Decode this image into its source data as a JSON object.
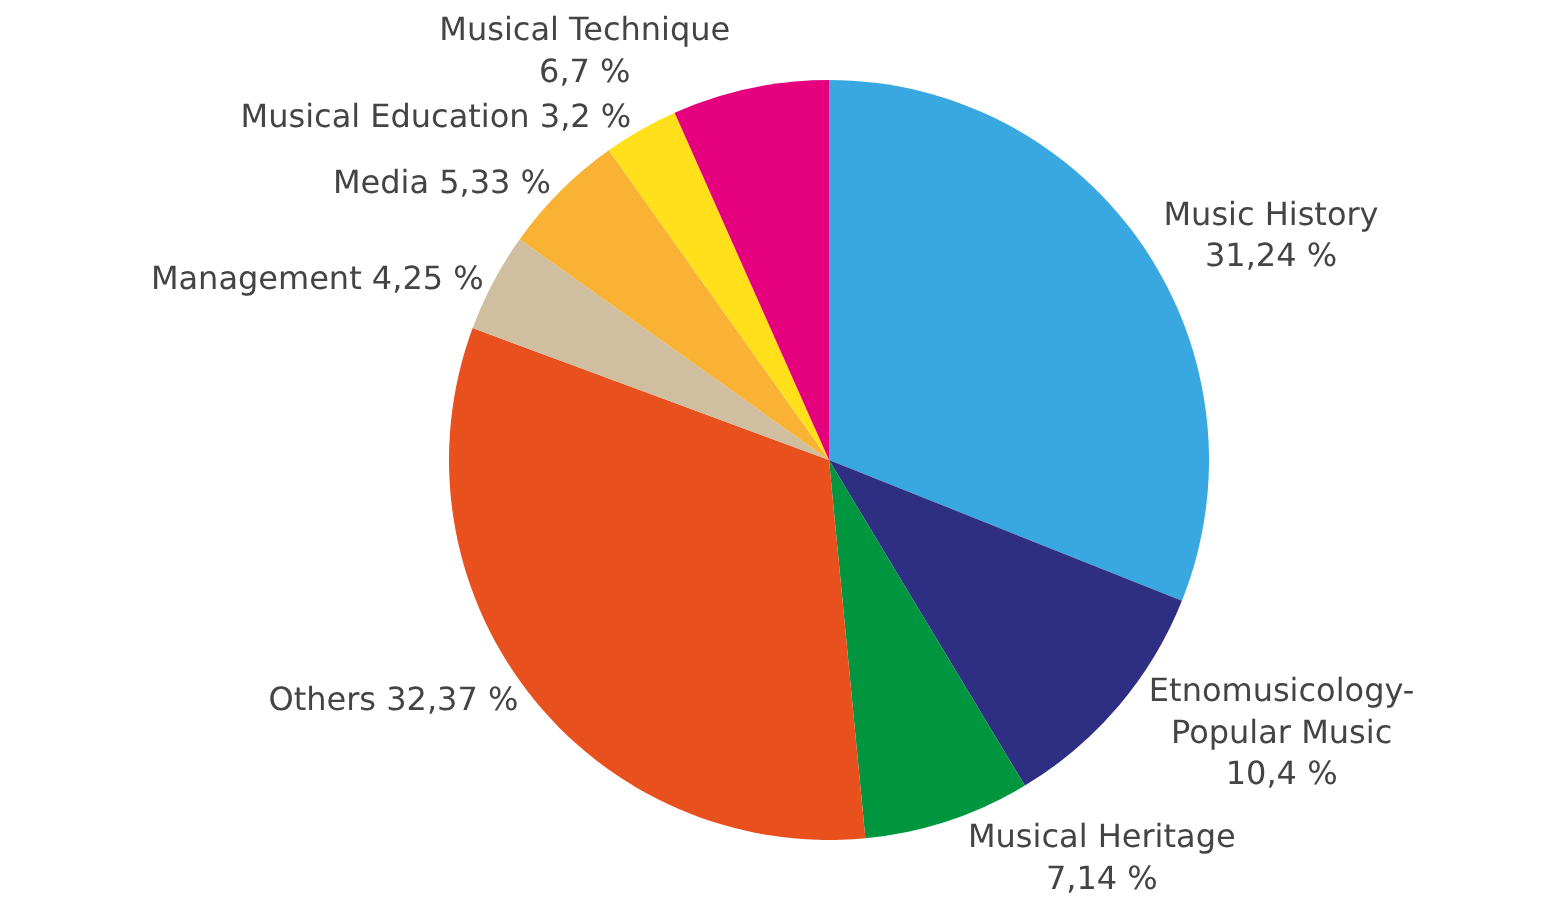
{
  "chart_data": {
    "type": "pie",
    "categories": [
      "Music History",
      "Etnomusicology-Popular Music",
      "Musical Heritage",
      "Others",
      "Management",
      "Media",
      "Musical Education",
      "Musical Technique"
    ],
    "values": [
      31.24,
      10.4,
      7.14,
      32.37,
      4.25,
      5.33,
      3.2,
      6.7
    ],
    "value_labels": [
      "31,24 %",
      "10,4 %",
      "7,14 %",
      "32,37 %",
      "4,25 %",
      "5,33 %",
      "3,2 %",
      "6,7 %"
    ],
    "colors": [
      "#3aa8e0",
      "#2e2e82",
      "#009640",
      "#e8511e",
      "#cfbfa0",
      "#f9b233",
      "#ffe01a",
      "#e5007e"
    ],
    "legend": false
  }
}
